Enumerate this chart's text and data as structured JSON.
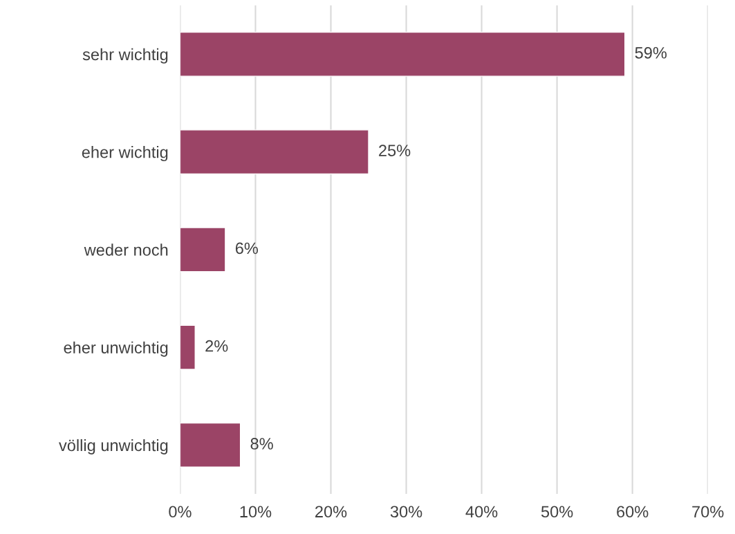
{
  "chart_data": {
    "type": "bar",
    "orientation": "horizontal",
    "categories": [
      "sehr wichtig",
      "eher wichtig",
      "weder noch",
      "eher unwichtig",
      "völlig unwichtig"
    ],
    "values": [
      59,
      25,
      6,
      2,
      8
    ],
    "value_labels": [
      "59%",
      "25%",
      "6%",
      "2%",
      "8%"
    ],
    "color": "#9b4466",
    "xlim": [
      0,
      70
    ],
    "xticks": [
      {
        "value": 0,
        "label": "0%"
      },
      {
        "value": 10,
        "label": "10%"
      },
      {
        "value": 20,
        "label": "20%"
      },
      {
        "value": 30,
        "label": "30%"
      },
      {
        "value": 40,
        "label": "40%"
      },
      {
        "value": 50,
        "label": "50%"
      },
      {
        "value": 60,
        "label": "60%"
      },
      {
        "value": 70,
        "label": "70%"
      }
    ],
    "grid": "x",
    "legend": false
  }
}
